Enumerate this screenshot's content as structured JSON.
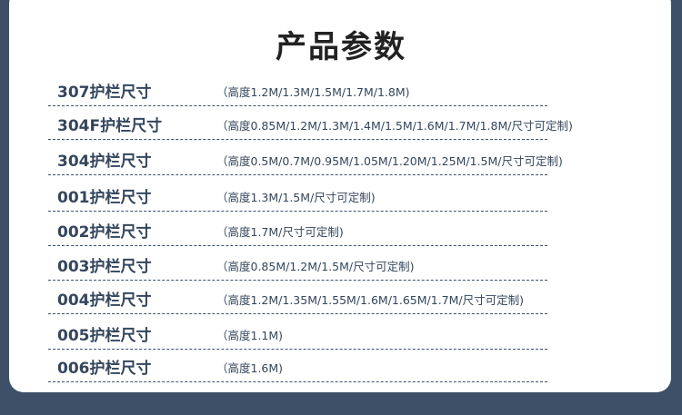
{
  "title": "产品参数",
  "rows": [
    {
      "name": "307护栏尺寸",
      "spec": "（高度1.2M/1.3M/1.5M/1.7M/1.8M)"
    },
    {
      "name": "304F护栏尺寸",
      "spec": "（高度0.85M/1.2M/1.3M/1.4M/1.5M/1.6M/1.7M/1.8M/尺寸可定制)"
    },
    {
      "name": "304护栏尺寸",
      "spec": "（高度0.5M/0.7M/0.95M/1.05M/1.20M/1.25M/1.5M/尺寸可定制)"
    },
    {
      "name": "001护栏尺寸",
      "spec": "（高度1.3M/1.5M/尺寸可定制)"
    },
    {
      "name": "002护栏尺寸",
      "spec": "（高度1.7M/尺寸可定制)"
    },
    {
      "name": "003护栏尺寸",
      "spec": "（高度0.85M/1.2M/1.5M/尺寸可定制)"
    },
    {
      "name": "004护栏尺寸",
      "spec": "（高度1.2M/1.35M/1.55M/1.6M/1.65M/1.7M/尺寸可定制)"
    },
    {
      "name": "005护栏尺寸",
      "spec": "（高度1.1M)"
    },
    {
      "name": "006护栏尺寸",
      "spec": "（高度1.6M)"
    }
  ]
}
